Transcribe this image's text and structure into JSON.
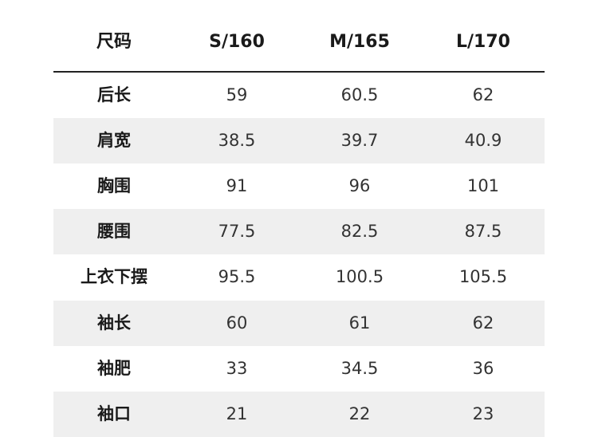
{
  "header": [
    "尺码",
    "S/160",
    "M/165",
    "L/170"
  ],
  "rows": [
    {
      "label": "后长",
      "values": [
        "59",
        "60.5",
        "62"
      ]
    },
    {
      "label": "肩宽",
      "values": [
        "38.5",
        "39.7",
        "40.9"
      ]
    },
    {
      "label": "胸围",
      "values": [
        "91",
        "96",
        "101"
      ]
    },
    {
      "label": "腰围",
      "values": [
        "77.5",
        "82.5",
        "87.5"
      ]
    },
    {
      "label": "上衣下摆",
      "values": [
        "95.5",
        "100.5",
        "105.5"
      ]
    },
    {
      "label": "袖长",
      "values": [
        "60",
        "61",
        "62"
      ]
    },
    {
      "label": "袖肥",
      "values": [
        "33",
        "34.5",
        "36"
      ]
    },
    {
      "label": "袖口",
      "values": [
        "21",
        "22",
        "23"
      ]
    }
  ],
  "colors": {
    "shaded_row": "#efefef",
    "rule": "#222222"
  }
}
